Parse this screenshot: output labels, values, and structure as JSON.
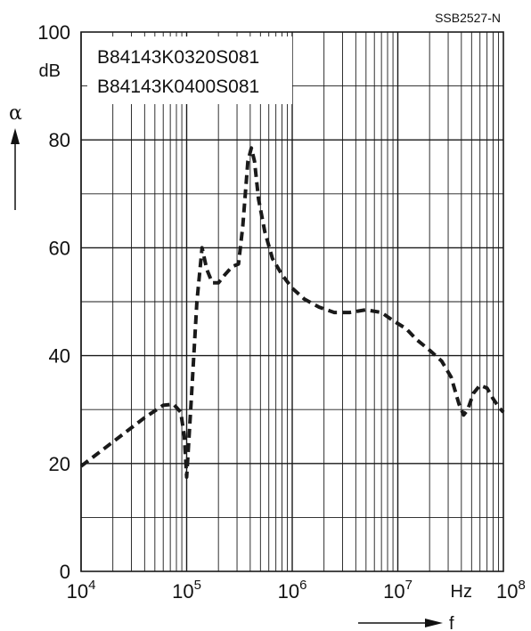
{
  "figure_code": "SSB2527-N",
  "legend": [
    "B84143K0320S081",
    "B84143K0400S081"
  ],
  "y_axis": {
    "symbol": "α",
    "unit": "dB",
    "tick_labels": [
      "0",
      "20",
      "40",
      "60",
      "80",
      "100"
    ]
  },
  "x_axis": {
    "symbol": "f",
    "unit": "Hz",
    "tick_base": "10",
    "tick_exponents": [
      "4",
      "5",
      "6",
      "7",
      "8"
    ]
  },
  "colors": {
    "curve": "#1a1a1a",
    "grid": "#1a1a1a",
    "background": "#ffffff"
  },
  "chart_data": {
    "type": "line",
    "x_scale": "log",
    "xlim": [
      10000,
      100000000
    ],
    "ylim": [
      0,
      100
    ],
    "xlabel": "f",
    "ylabel": "α",
    "x_unit": "Hz",
    "y_unit": "dB",
    "grid": true,
    "line_style": "dashed",
    "series": [
      {
        "x": [
          10000,
          20000,
          40000,
          60000,
          75000,
          88000,
          95000,
          100000,
          110000,
          125000,
          140000,
          155000,
          175000,
          200000,
          230000,
          270000,
          310000,
          340000,
          380000,
          410000,
          440000,
          480000,
          550000,
          650000,
          800000,
          1000000,
          1300000,
          1800000,
          2500000,
          3500000,
          5000000,
          7000000,
          9000000,
          12000000,
          15000000,
          20000000,
          26000000,
          32000000,
          38000000,
          42000000,
          46000000,
          52000000,
          60000000,
          70000000,
          80000000,
          90000000,
          100000000
        ],
        "y": [
          19.5,
          24,
          28.5,
          30.8,
          31,
          29.5,
          25,
          17.5,
          31,
          50,
          60,
          56,
          53.5,
          53.5,
          55,
          56.5,
          57,
          64,
          76,
          78.5,
          76,
          69,
          63,
          58,
          55,
          52.5,
          50.5,
          49,
          48,
          48,
          48.5,
          48,
          46.5,
          45,
          43,
          41,
          39,
          36,
          31,
          29,
          30,
          33,
          34.5,
          34,
          32,
          30.5,
          29.5
        ]
      }
    ]
  }
}
